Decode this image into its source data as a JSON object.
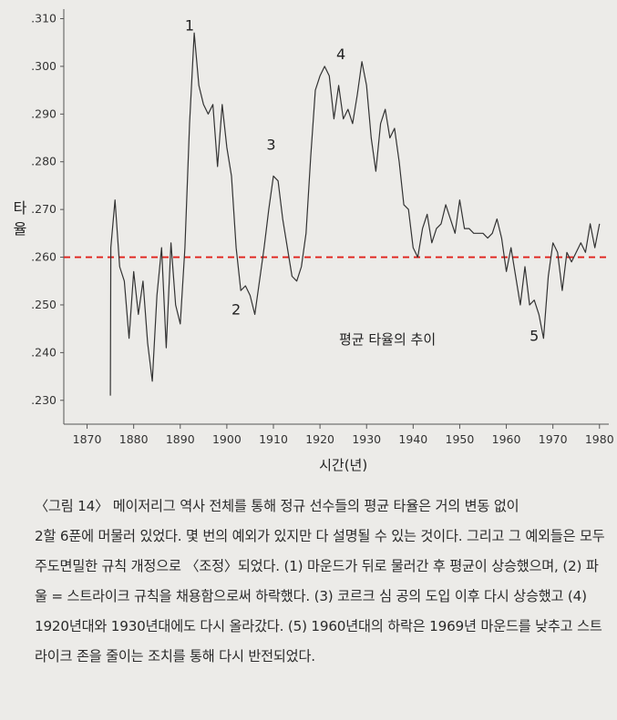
{
  "chart_data": {
    "type": "line",
    "title": "",
    "xlabel": "시간(년)",
    "ylabel": "타율",
    "xlim": [
      1865,
      1982
    ],
    "ylim": [
      0.225,
      0.312
    ],
    "x_ticks": [
      1870,
      1880,
      1890,
      1900,
      1910,
      1920,
      1930,
      1940,
      1950,
      1960,
      1970,
      1980
    ],
    "y_ticks": [
      ".310",
      ".300",
      ".290",
      ".280",
      ".270",
      ".260",
      ".250",
      ".240",
      ".230"
    ],
    "y_tick_values": [
      0.31,
      0.3,
      0.29,
      0.28,
      0.27,
      0.26,
      0.25,
      0.24,
      0.23
    ],
    "reference_line": {
      "value": 0.26,
      "color": "#e0201a",
      "style": "dashed"
    },
    "annotation_text": "평균 타율의 추이",
    "series": [
      {
        "color": "#333333",
        "points": [
          [
            1875.0,
            0.231
          ],
          [
            1875.1,
            0.262
          ],
          [
            1876,
            0.272
          ],
          [
            1877,
            0.258
          ],
          [
            1878,
            0.255
          ],
          [
            1879,
            0.243
          ],
          [
            1880,
            0.257
          ],
          [
            1881,
            0.248
          ],
          [
            1882,
            0.255
          ],
          [
            1883,
            0.242
          ],
          [
            1884,
            0.234
          ],
          [
            1885,
            0.252
          ],
          [
            1886,
            0.262
          ],
          [
            1887,
            0.241
          ],
          [
            1888,
            0.263
          ],
          [
            1889,
            0.25
          ],
          [
            1890,
            0.246
          ],
          [
            1891,
            0.262
          ],
          [
            1892,
            0.288
          ],
          [
            1893,
            0.307
          ],
          [
            1894,
            0.296
          ],
          [
            1895,
            0.292
          ],
          [
            1896,
            0.29
          ],
          [
            1897,
            0.292
          ],
          [
            1898,
            0.279
          ],
          [
            1899,
            0.292
          ],
          [
            1900,
            0.283
          ],
          [
            1901,
            0.277
          ],
          [
            1902,
            0.262
          ],
          [
            1903,
            0.253
          ],
          [
            1904,
            0.254
          ],
          [
            1905,
            0.252
          ],
          [
            1906,
            0.248
          ],
          [
            1907,
            0.255
          ],
          [
            1908,
            0.262
          ],
          [
            1909,
            0.27
          ],
          [
            1910,
            0.277
          ],
          [
            1911,
            0.276
          ],
          [
            1912,
            0.268
          ],
          [
            1913,
            0.262
          ],
          [
            1914,
            0.256
          ],
          [
            1915,
            0.255
          ],
          [
            1916,
            0.258
          ],
          [
            1917,
            0.265
          ],
          [
            1918,
            0.281
          ],
          [
            1919,
            0.295
          ],
          [
            1920,
            0.298
          ],
          [
            1921,
            0.3
          ],
          [
            1922,
            0.298
          ],
          [
            1923,
            0.289
          ],
          [
            1924,
            0.296
          ],
          [
            1925,
            0.289
          ],
          [
            1926,
            0.291
          ],
          [
            1927,
            0.288
          ],
          [
            1928,
            0.294
          ],
          [
            1929,
            0.301
          ],
          [
            1930,
            0.296
          ],
          [
            1931,
            0.285
          ],
          [
            1932,
            0.278
          ],
          [
            1933,
            0.288
          ],
          [
            1934,
            0.291
          ],
          [
            1935,
            0.285
          ],
          [
            1936,
            0.287
          ],
          [
            1937,
            0.28
          ],
          [
            1938,
            0.271
          ],
          [
            1939,
            0.27
          ],
          [
            1940,
            0.262
          ],
          [
            1941,
            0.26
          ],
          [
            1942,
            0.266
          ],
          [
            1943,
            0.269
          ],
          [
            1944,
            0.263
          ],
          [
            1945,
            0.266
          ],
          [
            1946,
            0.267
          ],
          [
            1947,
            0.271
          ],
          [
            1948,
            0.268
          ],
          [
            1949,
            0.265
          ],
          [
            1950,
            0.272
          ],
          [
            1951,
            0.266
          ],
          [
            1952,
            0.266
          ],
          [
            1953,
            0.265
          ],
          [
            1954,
            0.265
          ],
          [
            1955,
            0.265
          ],
          [
            1956,
            0.264
          ],
          [
            1957,
            0.265
          ],
          [
            1958,
            0.268
          ],
          [
            1959,
            0.264
          ],
          [
            1960,
            0.257
          ],
          [
            1961,
            0.262
          ],
          [
            1962,
            0.256
          ],
          [
            1963,
            0.25
          ],
          [
            1964,
            0.258
          ],
          [
            1965,
            0.25
          ],
          [
            1966,
            0.251
          ],
          [
            1967,
            0.248
          ],
          [
            1968,
            0.243
          ],
          [
            1969,
            0.256
          ],
          [
            1970,
            0.263
          ],
          [
            1971,
            0.261
          ],
          [
            1972,
            0.253
          ],
          [
            1973,
            0.261
          ],
          [
            1974,
            0.259
          ],
          [
            1975,
            0.261
          ],
          [
            1976,
            0.263
          ],
          [
            1977,
            0.261
          ],
          [
            1978,
            0.267
          ],
          [
            1979,
            0.262
          ],
          [
            1980,
            0.267
          ]
        ]
      }
    ],
    "point_labels": [
      {
        "text": "1",
        "x": 1892.0,
        "y": 0.3075
      },
      {
        "text": "2",
        "x": 1902.0,
        "y": 0.248
      },
      {
        "text": "3",
        "x": 1909.5,
        "y": 0.2825
      },
      {
        "text": "4",
        "x": 1924.5,
        "y": 0.3015
      },
      {
        "text": "5",
        "x": 1966.0,
        "y": 0.2425
      }
    ]
  },
  "caption": {
    "lead": "〈그림 14〉 메이저리그 역사 전체를 통해 정규 선수들의 평균 타율은 거의 변동 없이",
    "body": "2할 6푼에 머물러 있었다. 몇 번의 예외가 있지만 다 설명될 수 있는 것이다. 그리고 그 예외들은 모두 주도면밀한 규칙 개정으로 〈조정〉되었다. (1) 마운드가 뒤로 물러간 후 평균이 상승했으며, (2) 파울 = 스트라이크 규칙을 채용함으로써 하락했다. (3) 코르크 심 공의 도입 이후 다시 상승했고 (4) 1920년대와 1930년대에도 다시 올라갔다. (5) 1960년대의 하락은 1969년 마운드를 낮추고 스트라이크 존을 줄이는 조치를 통해 다시 반전되었다."
  }
}
